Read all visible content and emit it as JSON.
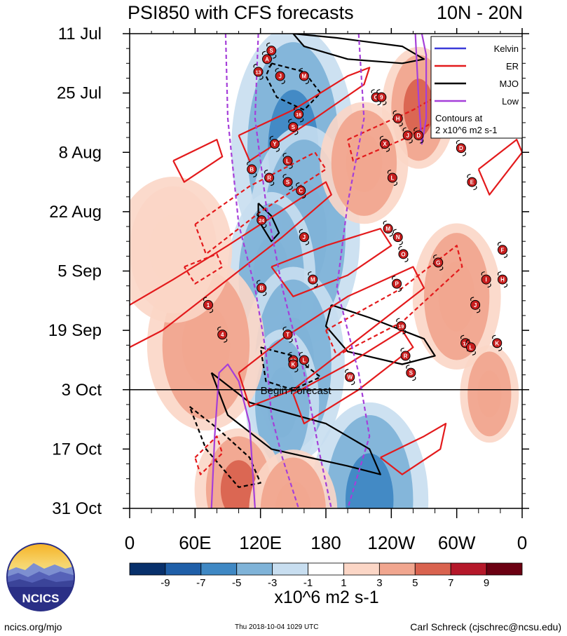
{
  "chart_data": {
    "type": "heatmap",
    "title": "PSI850 with CFS forecasts",
    "region_label": "10N - 20N",
    "x_tick_labels": [
      "0",
      "60E",
      "120E",
      "180",
      "120W",
      "60W",
      "0"
    ],
    "x_ticks_deg": [
      0,
      60,
      120,
      180,
      240,
      300,
      360
    ],
    "x_range_deg": [
      0,
      360
    ],
    "y_tick_labels": [
      "11 Jul",
      "25 Jul",
      "8 Aug",
      "22 Aug",
      "5 Sep",
      "19 Sep",
      "3 Oct",
      "17 Oct",
      "31 Oct"
    ],
    "y_ticks_day": [
      0,
      14,
      28,
      42,
      56,
      70,
      84,
      98,
      112
    ],
    "y_range_day": [
      0,
      112
    ],
    "forecast_start_day": 84,
    "forecast_label": "Begin Forecast",
    "legend": {
      "entries": [
        {
          "name": "Kelvin",
          "color": "#3b3bd9"
        },
        {
          "name": "ER",
          "color": "#e31a1c"
        },
        {
          "name": "MJO",
          "color": "#000000"
        },
        {
          "name": "Low",
          "color": "#a53fd9"
        }
      ],
      "note_line1": "Contours at",
      "note_line2": "2 x10^6 m2 s-1",
      "position": "top-right"
    },
    "colorbar": {
      "levels": [
        -11,
        -9,
        -7,
        -5,
        -3,
        -1,
        1,
        3,
        5,
        7,
        9,
        11
      ],
      "tick_labels": [
        "-9",
        "-7",
        "-5",
        "-3",
        "-1",
        "1",
        "3",
        "5",
        "7",
        "9"
      ],
      "colors": [
        "#08306b",
        "#1f5fa8",
        "#3f88c4",
        "#7fb3d8",
        "#c8def0",
        "#ffffff",
        "#fbd6c6",
        "#f1a68f",
        "#d9634f",
        "#b5182a",
        "#6b0012"
      ],
      "units": "x10^6 m2 s-1"
    },
    "anomaly_bands": [
      {
        "day0": 2,
        "lon0": 150,
        "slope": 0.0,
        "width": 42,
        "value": -6,
        "len": 50
      },
      {
        "day0": 25,
        "lon0": 160,
        "slope": -0.05,
        "width": 38,
        "value": -5,
        "len": 45
      },
      {
        "day0": 40,
        "lon0": 130,
        "slope": 0.0,
        "width": 30,
        "value": -4,
        "len": 35
      },
      {
        "day0": 58,
        "lon0": 150,
        "slope": 0.0,
        "width": 35,
        "value": -5,
        "len": 40
      },
      {
        "day0": 72,
        "lon0": 140,
        "slope": 0.0,
        "width": 25,
        "value": -4,
        "len": 30
      },
      {
        "day0": 90,
        "lon0": 220,
        "slope": 0.0,
        "width": 40,
        "value": -7,
        "len": 40
      },
      {
        "day0": 95,
        "lon0": 100,
        "slope": 0.0,
        "width": 30,
        "value": 6,
        "len": 25
      },
      {
        "day0": 5,
        "lon0": 265,
        "slope": 0.0,
        "width": 25,
        "value": 5,
        "len": 25
      },
      {
        "day0": 56,
        "lon0": 70,
        "slope": 0.0,
        "width": 40,
        "value": 4,
        "len": 35
      },
      {
        "day0": 100,
        "lon0": 150,
        "slope": 0.0,
        "width": 30,
        "value": 4,
        "len": 25
      },
      {
        "day0": 47,
        "lon0": 300,
        "slope": 0.0,
        "width": 30,
        "value": 3,
        "len": 30
      },
      {
        "day0": 75,
        "lon0": 330,
        "slope": 0.0,
        "width": 20,
        "value": 4,
        "len": 20
      },
      {
        "day0": 36,
        "lon0": 40,
        "slope": 0.0,
        "width": 40,
        "value": 2,
        "len": 30
      },
      {
        "day0": 18,
        "lon0": 215,
        "slope": 0.0,
        "width": 30,
        "value": 3,
        "len": 25
      }
    ],
    "contours": [
      {
        "type": "MJO",
        "dashed": false,
        "points": [
          [
            150,
            0
          ],
          [
            190,
            1
          ],
          [
            250,
            3
          ],
          [
            270,
            6
          ],
          [
            250,
            7
          ],
          [
            200,
            6
          ],
          [
            160,
            3
          ],
          [
            150,
            0
          ]
        ]
      },
      {
        "type": "MJO",
        "dashed": true,
        "points": [
          [
            130,
            7
          ],
          [
            160,
            9
          ],
          [
            175,
            14
          ],
          [
            160,
            18
          ],
          [
            135,
            15
          ],
          [
            125,
            10
          ],
          [
            130,
            7
          ]
        ]
      },
      {
        "type": "MJO",
        "dashed": false,
        "points": [
          [
            185,
            64
          ],
          [
            220,
            67
          ],
          [
            270,
            72
          ],
          [
            280,
            76
          ],
          [
            250,
            78
          ],
          [
            200,
            75
          ],
          [
            180,
            69
          ],
          [
            185,
            64
          ]
        ]
      },
      {
        "type": "MJO",
        "dashed": true,
        "points": [
          [
            120,
            74
          ],
          [
            150,
            76
          ],
          [
            175,
            81
          ],
          [
            150,
            84
          ],
          [
            125,
            82
          ],
          [
            120,
            74
          ]
        ]
      },
      {
        "type": "MJO",
        "dashed": false,
        "points": [
          [
            75,
            80
          ],
          [
            110,
            87
          ],
          [
            180,
            92
          ],
          [
            220,
            98
          ],
          [
            230,
            104
          ],
          [
            200,
            102
          ],
          [
            130,
            98
          ],
          [
            90,
            90
          ],
          [
            75,
            80
          ]
        ]
      },
      {
        "type": "MJO",
        "dashed": true,
        "points": [
          [
            55,
            88
          ],
          [
            80,
            93
          ],
          [
            110,
            100
          ],
          [
            120,
            106
          ],
          [
            100,
            107
          ],
          [
            70,
            98
          ],
          [
            55,
            88
          ]
        ]
      },
      {
        "type": "MJO",
        "dashed": false,
        "points": [
          [
            118,
            40
          ],
          [
            130,
            43
          ],
          [
            137,
            47
          ],
          [
            130,
            49
          ],
          [
            118,
            44
          ],
          [
            118,
            40
          ]
        ]
      },
      {
        "type": "ER",
        "dashed": false,
        "points": [
          [
            0,
            64
          ],
          [
            40,
            58
          ],
          [
            90,
            50
          ],
          [
            150,
            40
          ],
          [
            180,
            35
          ],
          [
            185,
            38
          ],
          [
            140,
            48
          ],
          [
            80,
            60
          ],
          [
            30,
            70
          ],
          [
            0,
            74
          ]
        ]
      },
      {
        "type": "ER",
        "dashed": false,
        "points": [
          [
            100,
            24
          ],
          [
            150,
            18
          ],
          [
            200,
            10
          ],
          [
            220,
            8
          ],
          [
            215,
            12
          ],
          [
            170,
            20
          ],
          [
            110,
            30
          ],
          [
            100,
            24
          ]
        ]
      },
      {
        "type": "ER",
        "dashed": false,
        "points": [
          [
            130,
            55
          ],
          [
            180,
            50
          ],
          [
            230,
            46
          ],
          [
            240,
            50
          ],
          [
            200,
            57
          ],
          [
            150,
            62
          ],
          [
            130,
            55
          ]
        ]
      },
      {
        "type": "ER",
        "dashed": false,
        "points": [
          [
            100,
            80
          ],
          [
            140,
            72
          ],
          [
            200,
            62
          ],
          [
            260,
            55
          ],
          [
            270,
            60
          ],
          [
            210,
            72
          ],
          [
            150,
            84
          ],
          [
            110,
            88
          ],
          [
            100,
            80
          ]
        ]
      },
      {
        "type": "ER",
        "dashed": false,
        "points": [
          [
            150,
            85
          ],
          [
            200,
            78
          ],
          [
            250,
            70
          ],
          [
            260,
            74
          ],
          [
            210,
            84
          ],
          [
            160,
            92
          ],
          [
            150,
            85
          ]
        ]
      },
      {
        "type": "ER",
        "dashed": false,
        "points": [
          [
            230,
            100
          ],
          [
            270,
            95
          ],
          [
            290,
            92
          ],
          [
            285,
            98
          ],
          [
            250,
            104
          ],
          [
            230,
            100
          ]
        ]
      },
      {
        "type": "ER",
        "dashed": false,
        "points": [
          [
            320,
            32
          ],
          [
            355,
            25
          ],
          [
            360,
            28
          ],
          [
            330,
            38
          ],
          [
            320,
            32
          ]
        ]
      },
      {
        "type": "ER",
        "dashed": false,
        "points": [
          [
            40,
            30
          ],
          [
            80,
            25
          ],
          [
            85,
            29
          ],
          [
            50,
            35
          ],
          [
            40,
            30
          ]
        ]
      },
      {
        "type": "ER",
        "dashed": true,
        "points": [
          [
            60,
            45
          ],
          [
            110,
            36
          ],
          [
            170,
            28
          ],
          [
            180,
            32
          ],
          [
            120,
            42
          ],
          [
            70,
            52
          ],
          [
            60,
            45
          ]
        ]
      },
      {
        "type": "ER",
        "dashed": true,
        "points": [
          [
            50,
            55
          ],
          [
            80,
            52
          ],
          [
            85,
            55
          ],
          [
            60,
            59
          ],
          [
            50,
            55
          ]
        ]
      },
      {
        "type": "ER",
        "dashed": true,
        "points": [
          [
            180,
            70
          ],
          [
            250,
            60
          ],
          [
            300,
            50
          ],
          [
            305,
            55
          ],
          [
            250,
            68
          ],
          [
            190,
            76
          ],
          [
            180,
            70
          ]
        ]
      },
      {
        "type": "ER",
        "dashed": true,
        "points": [
          [
            60,
            100
          ],
          [
            80,
            95
          ],
          [
            85,
            99
          ],
          [
            65,
            104
          ],
          [
            60,
            100
          ]
        ]
      },
      {
        "type": "ER",
        "dashed": true,
        "points": [
          [
            200,
            25
          ],
          [
            260,
            18
          ],
          [
            300,
            12
          ],
          [
            305,
            17
          ],
          [
            250,
            25
          ],
          [
            205,
            30
          ],
          [
            200,
            25
          ]
        ]
      },
      {
        "type": "Low",
        "dashed": true,
        "points": [
          [
            88,
            0
          ],
          [
            90,
            20
          ],
          [
            100,
            45
          ],
          [
            115,
            60
          ],
          [
            125,
            75
          ],
          [
            130,
            90
          ],
          [
            140,
            100
          ],
          [
            155,
            112
          ]
        ]
      },
      {
        "type": "Low",
        "dashed": true,
        "points": [
          [
            118,
            0
          ],
          [
            115,
            20
          ],
          [
            125,
            40
          ],
          [
            140,
            60
          ],
          [
            160,
            80
          ],
          [
            175,
            100
          ],
          [
            185,
            112
          ]
        ]
      },
      {
        "type": "Low",
        "dashed": true,
        "points": [
          [
            210,
            0
          ],
          [
            215,
            20
          ],
          [
            200,
            40
          ],
          [
            190,
            60
          ],
          [
            210,
            80
          ],
          [
            220,
            95
          ],
          [
            200,
            112
          ]
        ]
      },
      {
        "type": "Low",
        "dashed": false,
        "points": [
          [
            75,
            112
          ],
          [
            78,
            95
          ],
          [
            82,
            80
          ],
          [
            90,
            78
          ],
          [
            100,
            82
          ],
          [
            110,
            92
          ],
          [
            115,
            112
          ]
        ]
      },
      {
        "type": "Low",
        "dashed": false,
        "points": [
          [
            262,
            0
          ],
          [
            265,
            15
          ],
          [
            268,
            26
          ],
          [
            272,
            20
          ],
          [
            272,
            5
          ],
          [
            268,
            0
          ]
        ]
      }
    ],
    "storms": [
      {
        "label": "S",
        "lon": 130,
        "day": 4
      },
      {
        "label": "A",
        "lon": 126,
        "day": 6
      },
      {
        "label": "13",
        "lon": 118,
        "day": 9
      },
      {
        "label": "J",
        "lon": 138,
        "day": 10
      },
      {
        "label": "M",
        "lon": 160,
        "day": 10
      },
      {
        "label": "16",
        "lon": 155,
        "day": 19
      },
      {
        "label": "S",
        "lon": 150,
        "day": 22
      },
      {
        "label": "Y",
        "lon": 133,
        "day": 26
      },
      {
        "label": "L",
        "lon": 145,
        "day": 30
      },
      {
        "label": "B",
        "lon": 112,
        "day": 32
      },
      {
        "label": "R",
        "lon": 128,
        "day": 34
      },
      {
        "label": "S",
        "lon": 145,
        "day": 35
      },
      {
        "label": "C",
        "lon": 157,
        "day": 37
      },
      {
        "label": "24",
        "lon": 121,
        "day": 44
      },
      {
        "label": "J",
        "lon": 160,
        "day": 48
      },
      {
        "label": "B",
        "lon": 121,
        "day": 60
      },
      {
        "label": "M",
        "lon": 168,
        "day": 58
      },
      {
        "label": "1",
        "lon": 72,
        "day": 64
      },
      {
        "label": "4",
        "lon": 85,
        "day": 71
      },
      {
        "label": "T",
        "lon": 145,
        "day": 71
      },
      {
        "label": "29",
        "lon": 150,
        "day": 77
      },
      {
        "label": "K",
        "lon": 150,
        "day": 78
      },
      {
        "label": "L",
        "lon": 160,
        "day": 77
      },
      {
        "label": "W",
        "lon": 202,
        "day": 81
      },
      {
        "label": "G",
        "lon": 226,
        "day": 15
      },
      {
        "label": "9",
        "lon": 231,
        "day": 15
      },
      {
        "label": "H",
        "lon": 246,
        "day": 20
      },
      {
        "label": "D",
        "lon": 265,
        "day": 24
      },
      {
        "label": "J",
        "lon": 255,
        "day": 24
      },
      {
        "label": "X",
        "lon": 234,
        "day": 26
      },
      {
        "label": "L",
        "lon": 241,
        "day": 34
      },
      {
        "label": "M",
        "lon": 237,
        "day": 46
      },
      {
        "label": "N",
        "lon": 246,
        "day": 48
      },
      {
        "label": "O",
        "lon": 251,
        "day": 52
      },
      {
        "label": "G",
        "lon": 283,
        "day": 54
      },
      {
        "label": "P",
        "lon": 245,
        "day": 59
      },
      {
        "label": "19",
        "lon": 249,
        "day": 69
      },
      {
        "label": "R",
        "lon": 253,
        "day": 76
      },
      {
        "label": "S",
        "lon": 258,
        "day": 80
      },
      {
        "label": "D",
        "lon": 304,
        "day": 27
      },
      {
        "label": "E",
        "lon": 314,
        "day": 35
      },
      {
        "label": "F",
        "lon": 342,
        "day": 51
      },
      {
        "label": "I",
        "lon": 327,
        "day": 58
      },
      {
        "label": "H",
        "lon": 342,
        "day": 58
      },
      {
        "label": "J",
        "lon": 317,
        "day": 64
      },
      {
        "label": "11",
        "lon": 308,
        "day": 73
      },
      {
        "label": "L",
        "lon": 313,
        "day": 74
      },
      {
        "label": "K",
        "lon": 337,
        "day": 73
      }
    ]
  },
  "footer": {
    "left": "ncics.org/mjo",
    "center": "Thu 2018-10-04 1029 UTC",
    "right": "Carl Schreck (cjschrec@ncsu.edu)"
  },
  "logo_text": "NCICS"
}
